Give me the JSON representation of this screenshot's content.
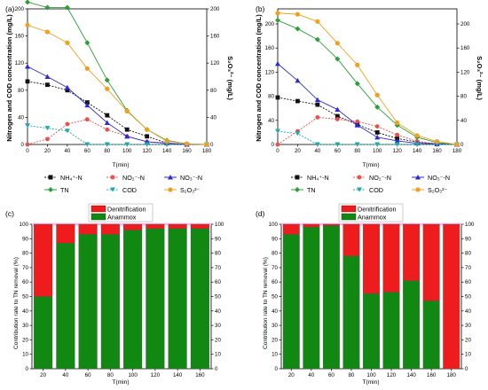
{
  "panels": {
    "a": {
      "label": "(a)",
      "ylabel": "Nitrogen and COD concentration (mg/L)",
      "y2label": "S₂O₃²⁻ (mg/L)"
    },
    "b": {
      "label": "(b)",
      "ylabel": "Nitrogen and COD concentration (mg/L)",
      "y2label": "S₂O₃²⁻ (mg/L)"
    },
    "c": {
      "label": "(c)",
      "ylabel": "Contribution rate to TN removal (%)"
    },
    "d": {
      "label": "(d)",
      "ylabel": "Contribution rate to TN removal (%)"
    }
  },
  "xlabel": "T(min)",
  "legend_line": [
    "NH₄⁺-N",
    "NO₂⁻-N",
    "NO₃⁻-N",
    "TN",
    "COD",
    "S₂O₃²⁻"
  ],
  "legend_bar": [
    "Denitrification",
    "Anammox"
  ],
  "colors": {
    "nh4": "#111111",
    "no2": "#e8504a",
    "no3": "#2a2ad8",
    "tn": "#2e9e3a",
    "cod": "#21a8a8",
    "s2o3": "#f0a020",
    "denit": "#ee1c1c",
    "anammox": "#118811"
  },
  "chart_data": [
    {
      "type": "line",
      "panel": "a",
      "x": [
        0,
        20,
        40,
        60,
        80,
        100,
        120,
        140,
        160,
        180
      ],
      "xlim": [
        0,
        180
      ],
      "ylim": [
        0,
        200
      ],
      "y2lim": [
        0,
        200
      ],
      "yticks": [
        0,
        40,
        80,
        120,
        160,
        200
      ],
      "y2ticks": [
        0,
        40,
        80,
        120,
        160,
        200
      ],
      "xticks": [
        0,
        20,
        40,
        60,
        80,
        100,
        120,
        140,
        160,
        180
      ],
      "series": [
        {
          "name": "NH₄⁺-N",
          "key": "nh4",
          "axis": "left",
          "values": [
            93,
            88,
            80,
            62,
            43,
            22,
            12,
            2,
            0,
            0
          ]
        },
        {
          "name": "NO₂⁻-N",
          "key": "no2",
          "axis": "left",
          "values": [
            0,
            8,
            30,
            37,
            22,
            12,
            4,
            1,
            0,
            0
          ]
        },
        {
          "name": "NO₃⁻-N",
          "key": "no3",
          "axis": "left",
          "values": [
            115,
            100,
            84,
            58,
            32,
            12,
            4,
            2,
            0,
            0
          ]
        },
        {
          "name": "TN",
          "key": "tn",
          "axis": "left",
          "values": [
            210,
            202,
            202,
            150,
            95,
            50,
            22,
            6,
            1,
            0
          ]
        },
        {
          "name": "COD",
          "key": "cod",
          "axis": "left",
          "values": [
            28,
            24,
            20,
            0,
            0,
            0,
            0,
            0,
            0,
            0
          ]
        },
        {
          "name": "S₂O₃²⁻",
          "key": "s2o3",
          "axis": "right",
          "values": [
            176,
            166,
            150,
            112,
            82,
            49,
            22,
            5,
            1,
            0
          ]
        }
      ]
    },
    {
      "type": "line",
      "panel": "b",
      "x": [
        0,
        20,
        40,
        60,
        80,
        100,
        120,
        140,
        160,
        180
      ],
      "xlim": [
        0,
        180
      ],
      "ylim": [
        0,
        225
      ],
      "y2lim": [
        0,
        225
      ],
      "yticks": [
        0,
        40,
        80,
        120,
        160,
        200
      ],
      "y2ticks": [
        0,
        40,
        80,
        120,
        160,
        200
      ],
      "xticks": [
        0,
        20,
        40,
        60,
        80,
        100,
        120,
        140,
        160,
        180
      ],
      "series": [
        {
          "name": "NH₄⁺-N",
          "key": "nh4",
          "axis": "left",
          "values": [
            78,
            72,
            66,
            47,
            33,
            20,
            10,
            4,
            1,
            0
          ]
        },
        {
          "name": "NO₂⁻-N",
          "key": "no2",
          "axis": "left",
          "values": [
            0,
            22,
            45,
            42,
            38,
            30,
            16,
            5,
            1,
            0
          ]
        },
        {
          "name": "NO₃⁻-N",
          "key": "no3",
          "axis": "left",
          "values": [
            134,
            106,
            74,
            58,
            32,
            12,
            6,
            2,
            1,
            0
          ]
        },
        {
          "name": "TN",
          "key": "tn",
          "axis": "left",
          "values": [
            206,
            192,
            174,
            142,
            101,
            62,
            32,
            12,
            3,
            0
          ]
        },
        {
          "name": "COD",
          "key": "cod",
          "axis": "left",
          "values": [
            22,
            18,
            0,
            0,
            0,
            0,
            0,
            0,
            0,
            0
          ]
        },
        {
          "name": "S₂O₃²⁻",
          "key": "s2o3",
          "axis": "right",
          "values": [
            218,
            216,
            204,
            168,
            132,
            82,
            36,
            15,
            5,
            0
          ]
        }
      ]
    },
    {
      "type": "bar",
      "panel": "c",
      "stacked": true,
      "categories": [
        "20",
        "40",
        "60",
        "80",
        "100",
        "120",
        "140",
        "160"
      ],
      "ylim": [
        0,
        100
      ],
      "yticks": [
        0,
        10,
        20,
        30,
        40,
        50,
        60,
        70,
        80,
        90,
        100
      ],
      "series": [
        {
          "name": "Anammox",
          "key": "anammox",
          "values": [
            50,
            87,
            93,
            93,
            96,
            97,
            97,
            97
          ]
        },
        {
          "name": "Denitrification",
          "key": "denit",
          "values": [
            50,
            13,
            7,
            7,
            4,
            3,
            3,
            3
          ]
        }
      ]
    },
    {
      "type": "bar",
      "panel": "d",
      "stacked": true,
      "categories": [
        "20",
        "40",
        "60",
        "80",
        "100",
        "120",
        "140",
        "160",
        "180"
      ],
      "ylim": [
        0,
        100
      ],
      "yticks": [
        0,
        10,
        20,
        30,
        40,
        50,
        60,
        70,
        80,
        90,
        100
      ],
      "series": [
        {
          "name": "Anammox",
          "key": "anammox",
          "values": [
            93,
            98,
            99,
            78,
            52,
            53,
            61,
            47,
            0
          ]
        },
        {
          "name": "Denitrification",
          "key": "denit",
          "values": [
            7,
            2,
            1,
            22,
            48,
            47,
            39,
            53,
            100
          ]
        }
      ]
    }
  ]
}
